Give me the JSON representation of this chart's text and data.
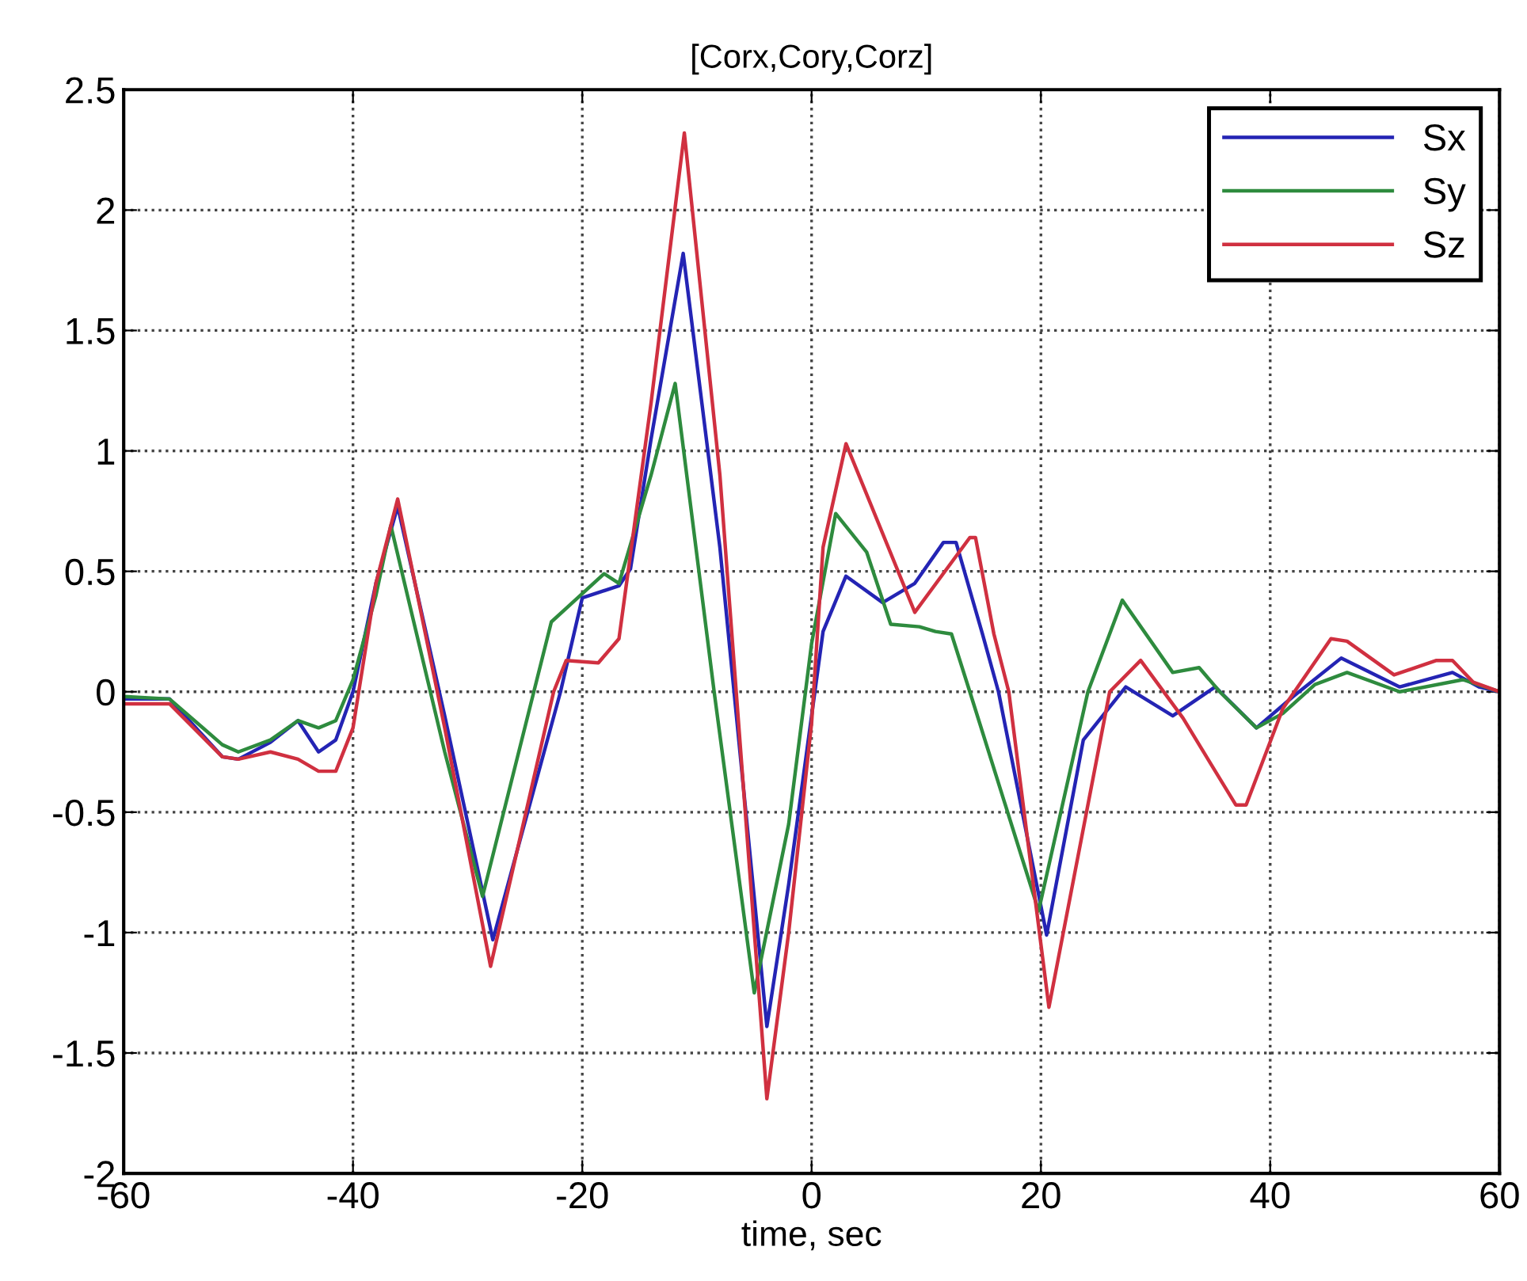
{
  "chart_data": {
    "type": "line",
    "title": "[Corx,Cory,Corz]",
    "xlabel": "time, sec",
    "xlim": [
      -60,
      60
    ],
    "xticks": [
      -60,
      -40,
      -20,
      0,
      20,
      40,
      60
    ],
    "ylim": [
      -2,
      2.5
    ],
    "yticks": [
      -2,
      -1.5,
      -1,
      -0.5,
      0,
      0.5,
      1,
      1.5,
      2,
      2.5
    ],
    "grid": true,
    "legend": "top right",
    "line_style": "solid",
    "marker": "none",
    "series": [
      {
        "name": "Sx",
        "color": "#2424b4",
        "x": [
          -60,
          -56,
          -51.4,
          -50,
          -47.2,
          -44.8,
          -43,
          -41.5,
          -40,
          -38,
          -36.1,
          -32,
          -27.8,
          -21.9,
          -20,
          -16.8,
          -15.8,
          -14,
          -11.2,
          -8,
          -3.9,
          -2,
          0,
          1,
          3,
          6.2,
          9,
          11.5,
          12.6,
          14.9,
          16.3,
          20.5,
          23.7,
          27.4,
          31.5,
          35.2,
          38.8,
          42,
          46.2,
          51.3,
          55.9,
          58.2,
          60
        ],
        "values": [
          -0.03,
          -0.03,
          -0.27,
          -0.28,
          -0.21,
          -0.12,
          -0.25,
          -0.2,
          0,
          0.45,
          0.77,
          -0.1,
          -1.03,
          0,
          0.39,
          0.44,
          0.51,
          1.05,
          1.82,
          0.6,
          -1.39,
          -0.8,
          -0.1,
          0.25,
          0.48,
          0.37,
          0.45,
          0.62,
          0.62,
          0.24,
          0,
          -1.01,
          -0.2,
          0.02,
          -0.1,
          0.02,
          -0.15,
          -0.02,
          0.14,
          0.02,
          0.08,
          0.02,
          0
        ]
      },
      {
        "name": "Sy",
        "color": "#2e8b3e",
        "x": [
          -60,
          -56,
          -51.4,
          -50,
          -47.2,
          -44.8,
          -43,
          -41.5,
          -40,
          -38,
          -36.7,
          -32,
          -28.7,
          -22.7,
          -18.1,
          -16.8,
          -14,
          -11.9,
          -8.5,
          -5,
          -2,
          0,
          2.1,
          4.8,
          6.9,
          9.4,
          10.8,
          12.2,
          13.8,
          19.8,
          24.1,
          27.1,
          31.5,
          33.8,
          35.6,
          38.8,
          41.1,
          43.9,
          46.7,
          51.3,
          56.8,
          60
        ],
        "values": [
          -0.02,
          -0.03,
          -0.22,
          -0.25,
          -0.2,
          -0.12,
          -0.15,
          -0.12,
          0.05,
          0.4,
          0.69,
          -0.25,
          -0.85,
          0.29,
          0.49,
          0.45,
          0.9,
          1.28,
          0,
          -1.25,
          -0.55,
          0.2,
          0.74,
          0.58,
          0.28,
          0.27,
          0.25,
          0.24,
          0,
          -0.91,
          0,
          0.38,
          0.08,
          0.1,
          0,
          -0.15,
          -0.09,
          0.03,
          0.08,
          0,
          0.05,
          0
        ]
      },
      {
        "name": "Sz",
        "color": "#d03040",
        "x": [
          -60,
          -56,
          -51.4,
          -50,
          -47.2,
          -44.8,
          -43,
          -41.5,
          -40,
          -38,
          -36.1,
          -32,
          -28,
          -22.5,
          -21.4,
          -18.6,
          -16.8,
          -14,
          -11.1,
          -8,
          -3.9,
          -2,
          0,
          1,
          3,
          9,
          13.8,
          14.3,
          15.9,
          17.2,
          20.7,
          26,
          28.7,
          32.4,
          37,
          37.9,
          41.1,
          45.3,
          46.7,
          50.8,
          54.5,
          55.9,
          57.7,
          60
        ],
        "values": [
          -0.05,
          -0.05,
          -0.27,
          -0.28,
          -0.25,
          -0.28,
          -0.33,
          -0.33,
          -0.15,
          0.45,
          0.8,
          -0.15,
          -1.14,
          0,
          0.13,
          0.12,
          0.22,
          1.2,
          2.32,
          0.9,
          -1.69,
          -1.0,
          -0.13,
          0.6,
          1.03,
          0.33,
          0.64,
          0.64,
          0.24,
          0,
          -1.31,
          0,
          0.13,
          -0.11,
          -0.47,
          -0.47,
          -0.07,
          0.22,
          0.21,
          0.07,
          0.13,
          0.13,
          0.04,
          0
        ]
      }
    ]
  }
}
